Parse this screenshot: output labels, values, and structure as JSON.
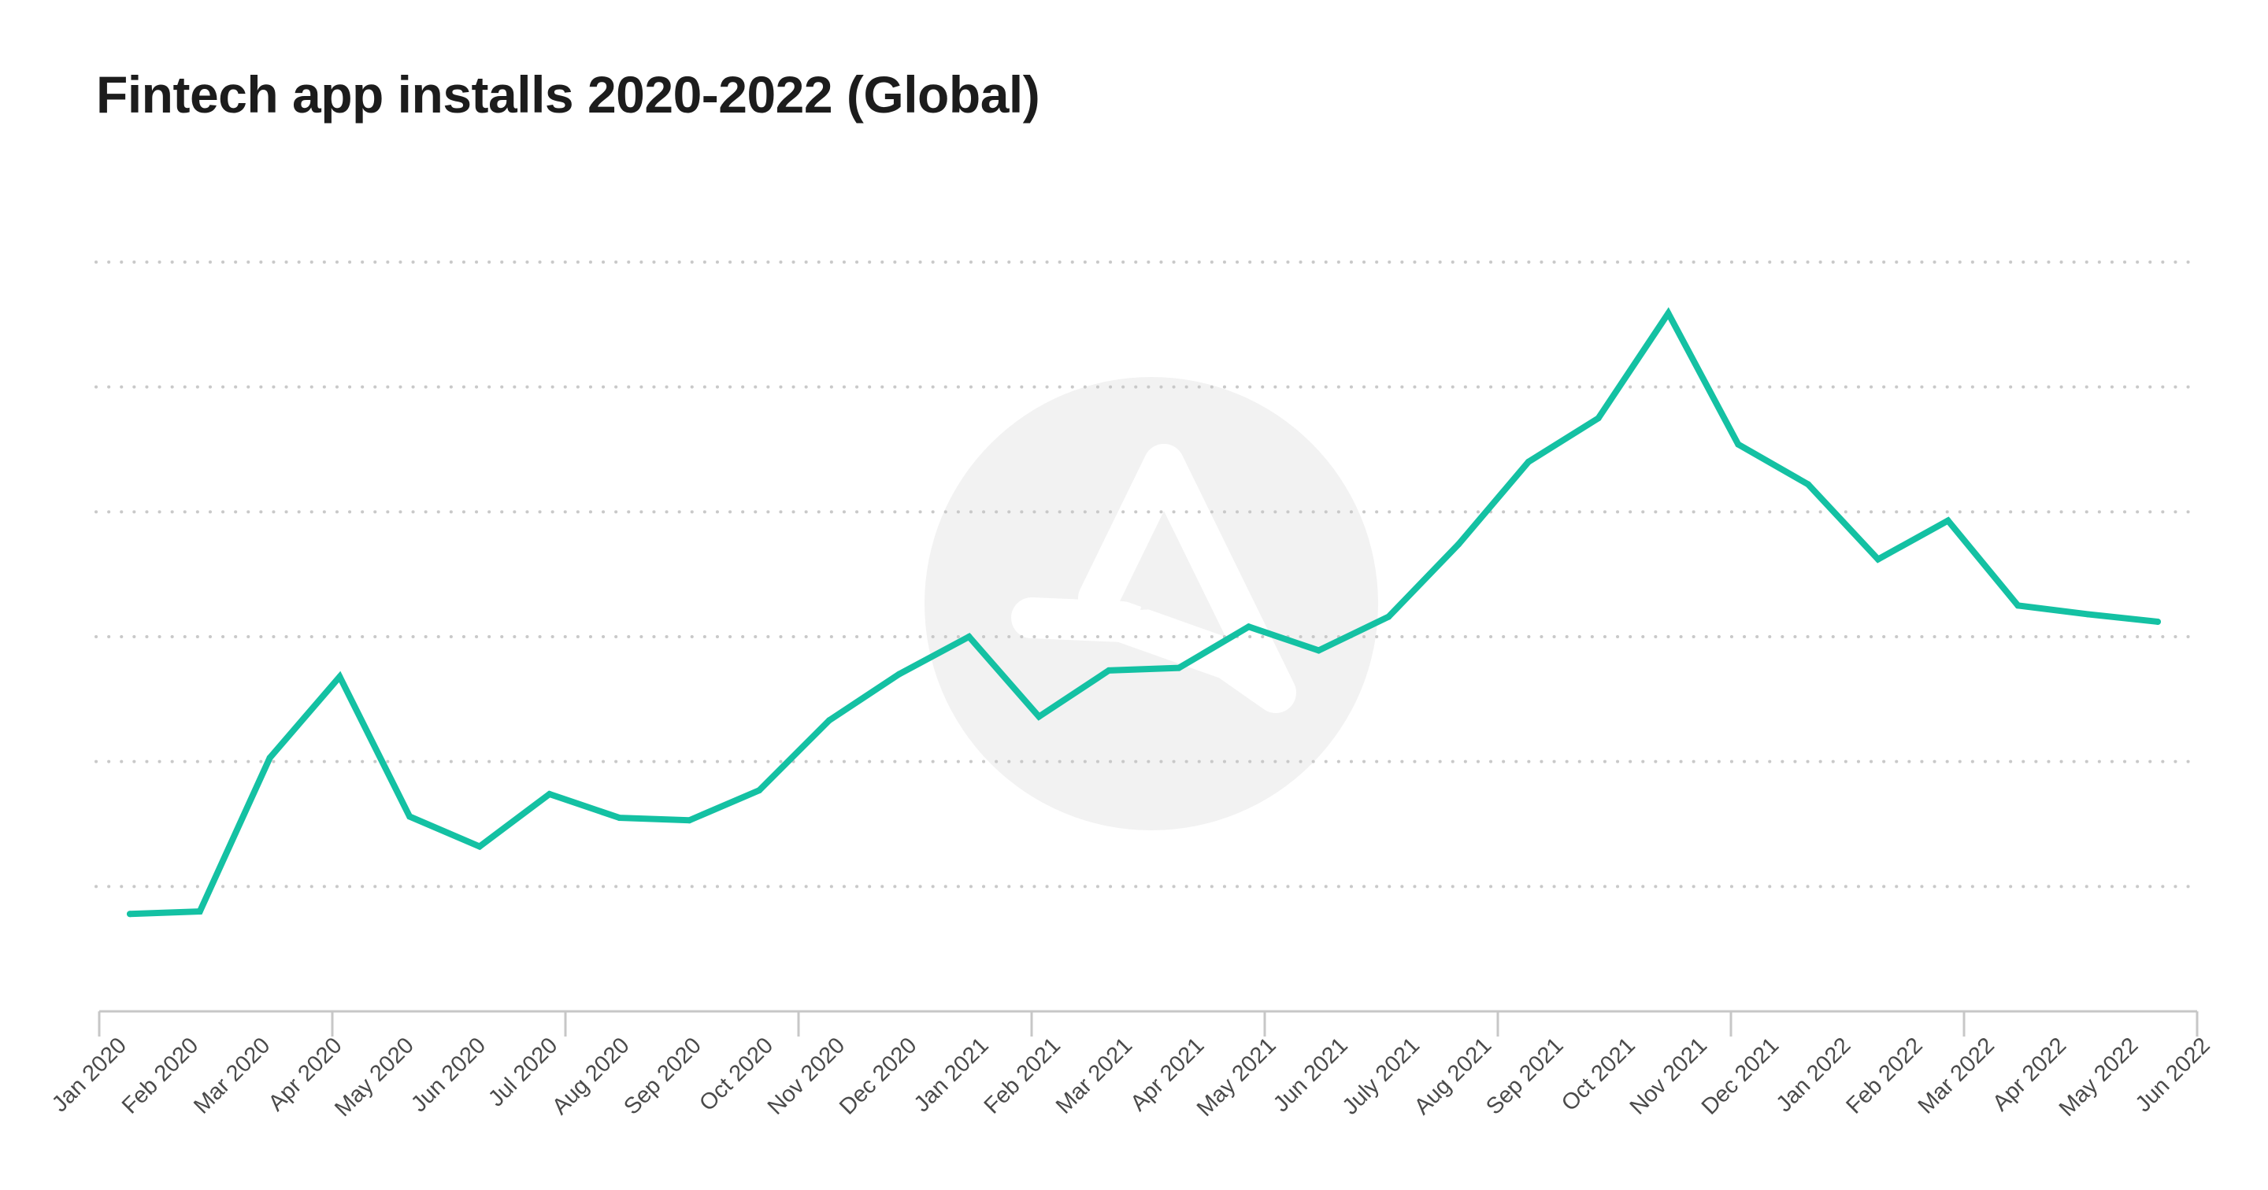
{
  "chart_data": {
    "type": "line",
    "title": "Fintech app installs 2020-2022 (Global)",
    "xlabel": "",
    "ylabel": "",
    "x_tick_labels": [
      "Jan 2020",
      "Feb 2020",
      "Mar 2020",
      "Apr 2020",
      "May 2020",
      "Jun 2020",
      "Jul 2020",
      "Aug 2020",
      "Sep 2020",
      "Oct 2020",
      "Nov 2020",
      "Dec 2020",
      "Jan 2021",
      "Feb 2021",
      "Mar 2021",
      "Apr 2021",
      "May 2021",
      "Jun 2021",
      "July 2021",
      "Aug 2021",
      "Sep 2021",
      "Oct 2021",
      "Nov 2021",
      "Dec 2021",
      "Jan 2022",
      "Feb 2022",
      "Mar 2022",
      "Apr 2022",
      "May 2022",
      "Jun 2022"
    ],
    "y_grid_lines": 6,
    "ylim": [
      0,
      6
    ],
    "y_axis_labels_shown": false,
    "grid": true,
    "series": [
      {
        "color": "#14c1a3",
        "values": [
          0.78,
          0.8,
          2.03,
          2.68,
          1.56,
          1.32,
          1.74,
          1.55,
          1.53,
          1.77,
          2.33,
          2.7,
          3.0,
          2.36,
          2.73,
          2.75,
          3.08,
          2.89,
          3.16,
          3.74,
          4.4,
          4.75,
          5.59,
          4.54,
          4.22,
          3.62,
          3.93,
          3.25,
          3.18,
          3.12
        ]
      }
    ],
    "colors": {
      "line": "#14c1a3",
      "grid": "#c9c9c9",
      "axis": "#c7c7c7",
      "watermark": "#f2f2f2"
    }
  },
  "watermark": {
    "icon": "brand-logo-watermark"
  }
}
